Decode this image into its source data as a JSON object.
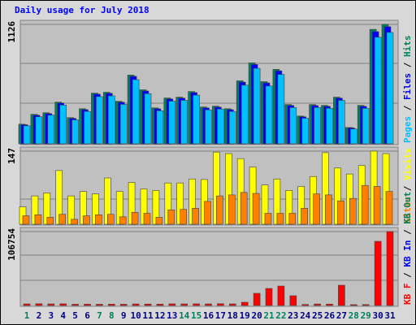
{
  "title": "Daily usage for July 2018",
  "categories": [
    "1",
    "2",
    "3",
    "4",
    "5",
    "6",
    "7",
    "8",
    "9",
    "10",
    "11",
    "12",
    "13",
    "14",
    "15",
    "16",
    "17",
    "18",
    "19",
    "20",
    "21",
    "22",
    "23",
    "24",
    "25",
    "26",
    "27",
    "28",
    "29",
    "30",
    "31"
  ],
  "category_colors": [
    "#00805c",
    "#000080",
    "#000080",
    "#000080",
    "#000080",
    "#000080",
    "#00805c",
    "#00805c",
    "#000080",
    "#000080",
    "#000080",
    "#000080",
    "#000080",
    "#00805c",
    "#00805c",
    "#000080",
    "#000080",
    "#000080",
    "#000080",
    "#000080",
    "#00805c",
    "#00805c",
    "#000080",
    "#000080",
    "#000080",
    "#000080",
    "#000080",
    "#00805c",
    "#00805c",
    "#000080",
    "#000080"
  ],
  "legend_separator": " / ",
  "chart_data": [
    {
      "type": "bar",
      "ylim": [
        0,
        1126
      ],
      "yticks": [
        1126
      ],
      "series": [
        {
          "name": "Hits",
          "color": "#00805c",
          "values": [
            185,
            278,
            293,
            393,
            247,
            331,
            478,
            486,
            401,
            648,
            509,
            339,
            432,
            440,
            493,
            347,
            355,
            331,
            594,
            763,
            586,
            702,
            370,
            262,
            370,
            362,
            440,
            154,
            362,
            1079,
            1126
          ]
        },
        {
          "name": "Files",
          "color": "#0000ff",
          "values": [
            180,
            270,
            285,
            385,
            240,
            322,
            468,
            476,
            392,
            636,
            498,
            330,
            423,
            431,
            483,
            338,
            346,
            322,
            582,
            748,
            574,
            688,
            361,
            255,
            361,
            353,
            431,
            150,
            353,
            1058,
            1104
          ]
        },
        {
          "name": "Pages",
          "color": "#00c0ff",
          "values": [
            170,
            255,
            270,
            365,
            226,
            305,
            445,
            452,
            372,
            605,
            473,
            312,
            402,
            410,
            459,
            320,
            328,
            305,
            553,
            712,
            545,
            654,
            342,
            241,
            342,
            335,
            410,
            140,
            335,
            1005,
            1050
          ]
        }
      ]
    },
    {
      "type": "bar",
      "ylim": [
        0,
        147
      ],
      "yticks": [
        147
      ],
      "series": [
        {
          "name": "Visits",
          "color": "#ffff00",
          "values": [
            35,
            57,
            63,
            108,
            57,
            66,
            61,
            93,
            66,
            84,
            71,
            68,
            83,
            83,
            91,
            90,
            145,
            142,
            132,
            115,
            79,
            91,
            68,
            76,
            96,
            144,
            113,
            101,
            118,
            147,
            142
          ]
        },
        {
          "name": "Sites",
          "color": "#ff8000",
          "values": [
            17,
            19,
            14,
            20,
            10,
            17,
            19,
            20,
            15,
            24,
            22,
            14,
            29,
            30,
            32,
            46,
            57,
            59,
            64,
            62,
            22,
            22,
            22,
            32,
            61,
            59,
            47,
            52,
            78,
            76,
            66
          ]
        }
      ]
    },
    {
      "type": "bar",
      "ylim": [
        0,
        106754
      ],
      "yticks": [
        106754
      ],
      "series": [
        {
          "name": "KB Out",
          "color": "#00805c",
          "values": [
            0,
            0,
            0,
            0,
            0,
            0,
            0,
            0,
            0,
            0,
            0,
            0,
            0,
            0,
            0,
            0,
            0,
            0,
            0,
            0,
            0,
            0,
            0,
            0,
            0,
            0,
            0,
            0,
            0,
            0,
            0
          ]
        },
        {
          "name": "KB In",
          "color": "#0000ff",
          "values": [
            0,
            0,
            0,
            0,
            0,
            0,
            0,
            0,
            0,
            0,
            0,
            0,
            0,
            0,
            0,
            0,
            0,
            0,
            0,
            0,
            0,
            0,
            0,
            0,
            0,
            0,
            0,
            0,
            0,
            0,
            0
          ]
        },
        {
          "name": "KB F",
          "color": "#ff0000",
          "values": [
            2300,
            2500,
            2300,
            2400,
            1800,
            1900,
            1800,
            1900,
            1800,
            2200,
            2100,
            2000,
            2400,
            2300,
            2400,
            2300,
            2600,
            2300,
            4700,
            17600,
            24600,
            28100,
            14100,
            1500,
            2200,
            2000,
            29300,
            1200,
            1300,
            92674,
            106754
          ]
        }
      ]
    }
  ]
}
